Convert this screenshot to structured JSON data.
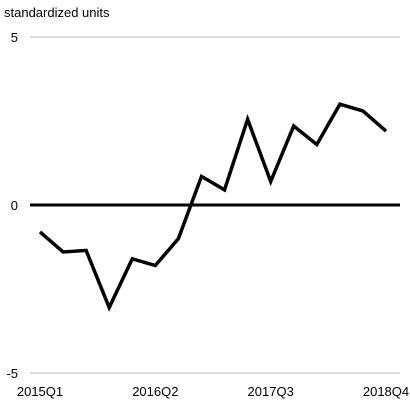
{
  "chart_data": {
    "type": "line",
    "ylabel": "standardized units",
    "ylim": [
      -5,
      5
    ],
    "yticks": [
      5,
      0,
      -5
    ],
    "x": [
      "2015Q1",
      "2015Q2",
      "2015Q3",
      "2015Q4",
      "2016Q1",
      "2016Q2",
      "2016Q3",
      "2016Q4",
      "2017Q1",
      "2017Q2",
      "2017Q3",
      "2017Q4",
      "2018Q1",
      "2018Q2",
      "2018Q3",
      "2018Q4"
    ],
    "xtick_labels": [
      "2015Q1",
      "2016Q2",
      "2017Q3",
      "2018Q4"
    ],
    "series": [
      {
        "values": [
          -0.8,
          -1.4,
          -1.35,
          -3.05,
          -1.6,
          -1.8,
          -1.0,
          0.85,
          0.45,
          2.55,
          0.7,
          2.35,
          1.8,
          3.0,
          2.8,
          2.2
        ],
        "color": "#000000"
      }
    ],
    "grid": true,
    "zero_line": true
  }
}
